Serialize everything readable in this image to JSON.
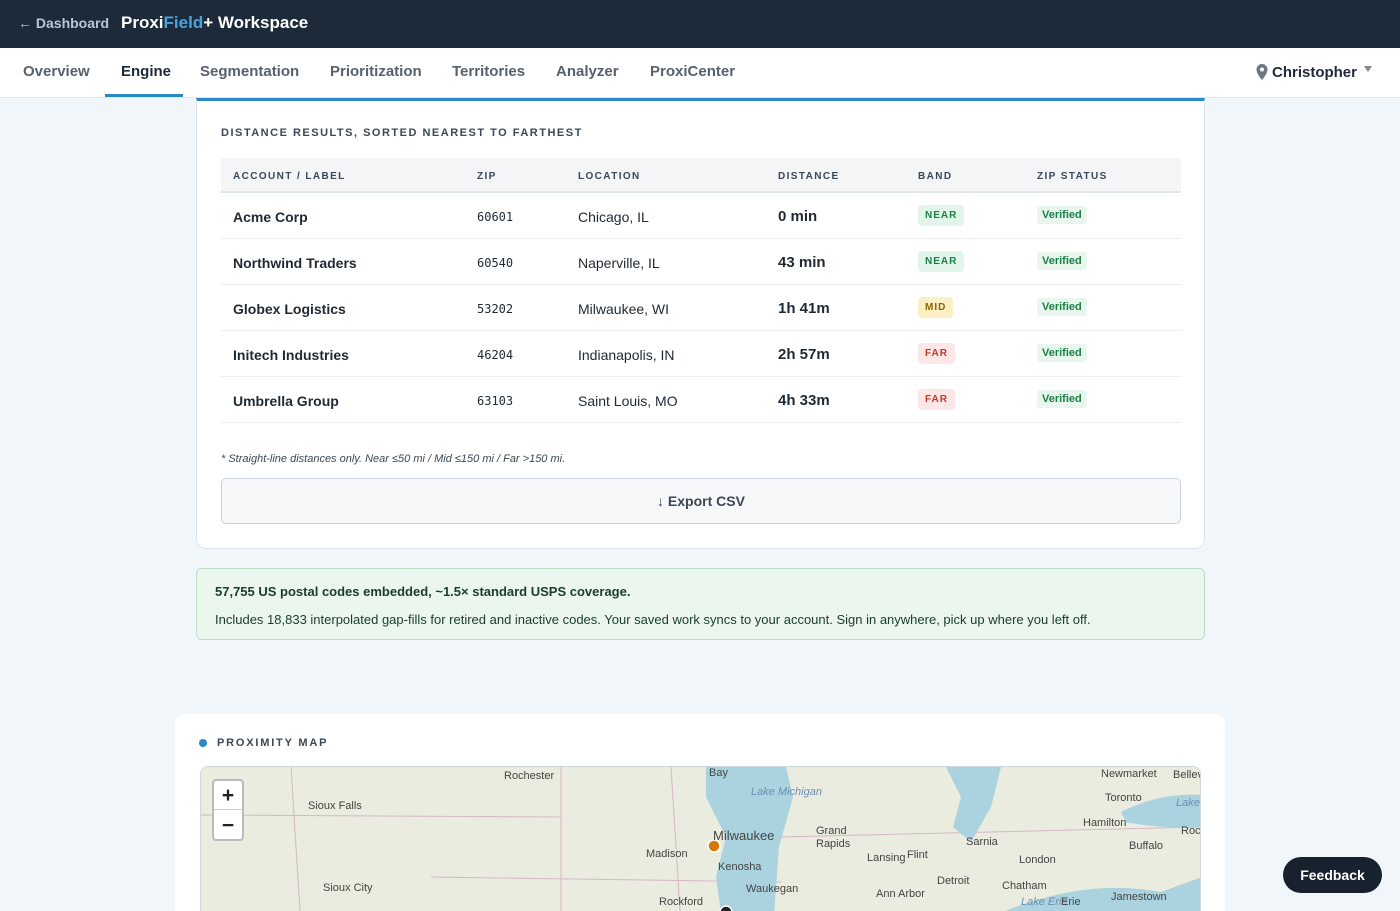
{
  "topbar": {
    "back": "← Dashboard",
    "brand": [
      "Proxi",
      "Field",
      "+ Workspace"
    ]
  },
  "nav": {
    "tabs": [
      "Overview",
      "Engine",
      "Segmentation",
      "Prioritization",
      "Territories",
      "Analyzer",
      "ProxiCenter"
    ],
    "active": 1,
    "user": "Christopher"
  },
  "results": {
    "title": "DISTANCE RESULTS, SORTED NEAREST TO FARTHEST",
    "columns": [
      "ACCOUNT / LABEL",
      "ZIP",
      "LOCATION",
      "DISTANCE",
      "BAND",
      "ZIP STATUS"
    ],
    "rows": [
      [
        "Acme Corp",
        "60601",
        "Chicago, IL",
        "0 min",
        "NEAR",
        "Verified"
      ],
      [
        "Northwind Traders",
        "60540",
        "Naperville, IL",
        "43 min",
        "NEAR",
        "Verified"
      ],
      [
        "Globex Logistics",
        "53202",
        "Milwaukee, WI",
        "1h 41m",
        "MID",
        "Verified"
      ],
      [
        "Initech Industries",
        "46204",
        "Indianapolis, IN",
        "2h 57m",
        "FAR",
        "Verified"
      ],
      [
        "Umbrella Group",
        "63103",
        "Saint Louis, MO",
        "4h 33m",
        "FAR",
        "Verified"
      ]
    ],
    "band_styles": {
      "NEAR": {
        "color": "#1a7f45",
        "background": "#e2f5ea"
      },
      "MID": {
        "color": "#8a6400",
        "background": "#fcefc2"
      },
      "FAR": {
        "color": "#c0392b",
        "background": "#fde6e6"
      }
    },
    "footnote": "* Straight-line distances only. Near ≤50 mi / Mid ≤150 mi / Far >150 mi.",
    "export": "↓ Export CSV"
  },
  "info": {
    "headline": "57,755 US postal codes embedded, ~1.5× standard USPS coverage.",
    "body": "Includes 18,833 interpolated gap-fills for retired and inactive codes. Your saved work syncs to your account. Sign in anywhere, pick up where you left off."
  },
  "map": {
    "title": "PROXIMITY MAP",
    "zoom_in": "+",
    "zoom_out": "−",
    "labels": [
      "Rochester",
      "Bay",
      "Lake Michigan",
      "Newmarket",
      "Belleville",
      "Toronto",
      "Lake Onta",
      "Sioux Falls",
      "Milwaukee",
      "Grand",
      "Rapids",
      "Hamilton",
      "Rochest",
      "Madison",
      "Lansing",
      "Flint",
      "Sarnia",
      "London",
      "Buffalo",
      "Kenosha",
      "Detroit",
      "Chatham",
      "Sioux City",
      "Waukegan",
      "Ann Arbor",
      "Lake Erie",
      "Erie",
      "Jamestown",
      "Rockford"
    ]
  },
  "feedback": "Feedback"
}
